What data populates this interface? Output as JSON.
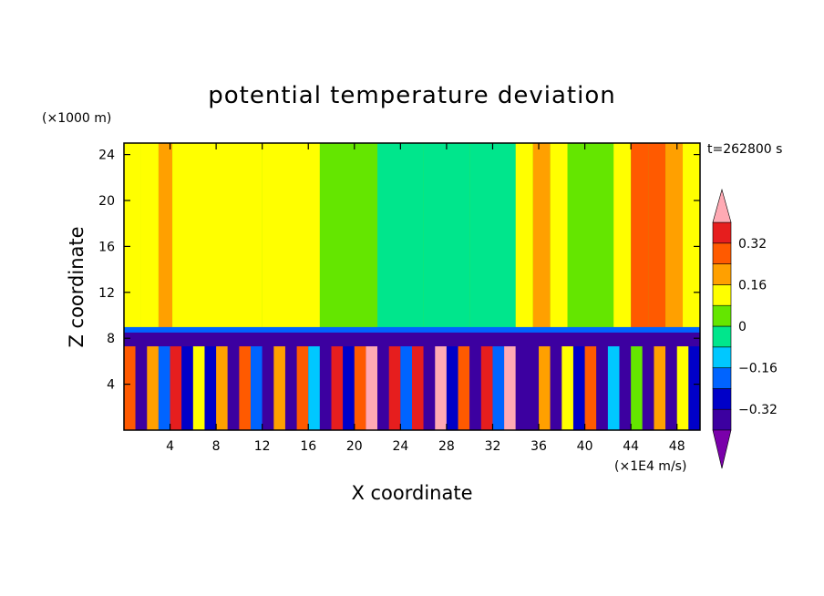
{
  "chart_data": {
    "type": "heatmap",
    "title": "potential temperature deviation",
    "xlabel": "X coordinate",
    "ylabel": "Z coordinate",
    "x_unit": "(×1E4 m/s)",
    "y_unit": "(×1000 m)",
    "time_label": "t=262800 s",
    "xlim": [
      0,
      50
    ],
    "ylim": [
      0,
      25
    ],
    "x_ticks": [
      4,
      8,
      12,
      16,
      20,
      24,
      28,
      32,
      36,
      40,
      44,
      48
    ],
    "y_ticks": [
      4,
      8,
      12,
      16,
      20,
      24
    ],
    "colorbar": {
      "levels": [
        -0.4,
        -0.32,
        -0.24,
        -0.16,
        -0.08,
        0,
        0.08,
        0.16,
        0.24,
        0.32,
        0.4
      ],
      "tick_labels": [
        "0.32",
        "0.16",
        "0",
        "−0.16",
        "−0.32"
      ],
      "tick_values": [
        0.32,
        0.16,
        0,
        -0.16,
        -0.32
      ],
      "colors": [
        "#7a00aa",
        "#3c00a0",
        "#0000c8",
        "#0064ff",
        "#00c8ff",
        "#00e68c",
        "#64e600",
        "#ffff00",
        "#ffa000",
        "#ff5a00",
        "#e61e1e",
        "#ffaab4"
      ],
      "extend": "both"
    },
    "upper_columns": [
      {
        "x": [
          0,
          1.5
        ],
        "level": 0.08
      },
      {
        "x": [
          1.5,
          3
        ],
        "level": 0.12
      },
      {
        "x": [
          3,
          4.2
        ],
        "level": 0.2
      },
      {
        "x": [
          4.2,
          12
        ],
        "level": 0.08
      },
      {
        "x": [
          12,
          17
        ],
        "level": 0.1
      },
      {
        "x": [
          17,
          19
        ],
        "level": 0.04
      },
      {
        "x": [
          19,
          22
        ],
        "level": 0.06
      },
      {
        "x": [
          22,
          26
        ],
        "level": -0.04
      },
      {
        "x": [
          26,
          30
        ],
        "level": -0.08
      },
      {
        "x": [
          30,
          34
        ],
        "level": -0.04
      },
      {
        "x": [
          34,
          35.5
        ],
        "level": 0.1
      },
      {
        "x": [
          35.5,
          37
        ],
        "level": 0.2
      },
      {
        "x": [
          37,
          38.5
        ],
        "level": 0.1
      },
      {
        "x": [
          38.5,
          42.5
        ],
        "level": 0.04
      },
      {
        "x": [
          42.5,
          44
        ],
        "level": 0.12
      },
      {
        "x": [
          44,
          45.5
        ],
        "level": 0.26
      },
      {
        "x": [
          45.5,
          47
        ],
        "level": 0.3
      },
      {
        "x": [
          47,
          48.5
        ],
        "level": 0.2
      },
      {
        "x": [
          48.5,
          50
        ],
        "level": 0.08
      }
    ],
    "boundary_layer_top": 8.5,
    "lower_columns": [
      {
        "x": [
          0,
          1
        ],
        "level": 0.24
      },
      {
        "x": [
          1,
          2
        ],
        "level": -0.36
      },
      {
        "x": [
          2,
          3
        ],
        "level": 0.16
      },
      {
        "x": [
          3,
          4
        ],
        "level": -0.2
      },
      {
        "x": [
          4,
          5
        ],
        "level": 0.36
      },
      {
        "x": [
          5,
          6
        ],
        "level": -0.32
      },
      {
        "x": [
          6,
          7
        ],
        "level": 0.1
      },
      {
        "x": [
          7,
          8
        ],
        "level": -0.28
      },
      {
        "x": [
          8,
          9
        ],
        "level": 0.2
      },
      {
        "x": [
          9,
          10
        ],
        "level": -0.36
      },
      {
        "x": [
          10,
          11
        ],
        "level": 0.3
      },
      {
        "x": [
          11,
          12
        ],
        "level": -0.24
      },
      {
        "x": [
          12,
          13
        ],
        "level": -0.36
      },
      {
        "x": [
          13,
          14
        ],
        "level": 0.16
      },
      {
        "x": [
          14,
          15
        ],
        "level": -0.36
      },
      {
        "x": [
          15,
          16
        ],
        "level": 0.28
      },
      {
        "x": [
          16,
          17
        ],
        "level": -0.16
      },
      {
        "x": [
          17,
          18
        ],
        "level": -0.36
      },
      {
        "x": [
          18,
          19
        ],
        "level": 0.36
      },
      {
        "x": [
          19,
          20
        ],
        "level": -0.32
      },
      {
        "x": [
          20,
          21
        ],
        "level": 0.3
      },
      {
        "x": [
          21,
          22
        ],
        "level": 0.4
      },
      {
        "x": [
          22,
          23
        ],
        "level": -0.36
      },
      {
        "x": [
          23,
          24
        ],
        "level": 0.34
      },
      {
        "x": [
          24,
          25
        ],
        "level": -0.2
      },
      {
        "x": [
          25,
          26
        ],
        "level": 0.36
      },
      {
        "x": [
          26,
          27
        ],
        "level": -0.36
      },
      {
        "x": [
          27,
          28
        ],
        "level": 0.4
      },
      {
        "x": [
          28,
          29
        ],
        "level": -0.28
      },
      {
        "x": [
          29,
          30
        ],
        "level": 0.3
      },
      {
        "x": [
          30,
          31
        ],
        "level": -0.36
      },
      {
        "x": [
          31,
          32
        ],
        "level": 0.36
      },
      {
        "x": [
          32,
          33
        ],
        "level": -0.24
      },
      {
        "x": [
          33,
          34
        ],
        "level": 0.4
      },
      {
        "x": [
          34,
          35
        ],
        "level": -0.36
      },
      {
        "x": [
          35,
          36
        ],
        "level": -0.4
      },
      {
        "x": [
          36,
          37
        ],
        "level": 0.2
      },
      {
        "x": [
          37,
          38
        ],
        "level": -0.36
      },
      {
        "x": [
          38,
          39
        ],
        "level": 0.1
      },
      {
        "x": [
          39,
          40
        ],
        "level": -0.28
      },
      {
        "x": [
          40,
          41
        ],
        "level": 0.24
      },
      {
        "x": [
          41,
          42
        ],
        "level": -0.36
      },
      {
        "x": [
          42,
          43
        ],
        "level": -0.16
      },
      {
        "x": [
          43,
          44
        ],
        "level": -0.4
      },
      {
        "x": [
          44,
          45
        ],
        "level": 0.04
      },
      {
        "x": [
          45,
          46
        ],
        "level": -0.36
      },
      {
        "x": [
          46,
          47
        ],
        "level": 0.16
      },
      {
        "x": [
          47,
          48
        ],
        "level": -0.4
      },
      {
        "x": [
          48,
          49
        ],
        "level": 0.1
      },
      {
        "x": [
          49,
          50
        ],
        "level": -0.32
      }
    ]
  }
}
